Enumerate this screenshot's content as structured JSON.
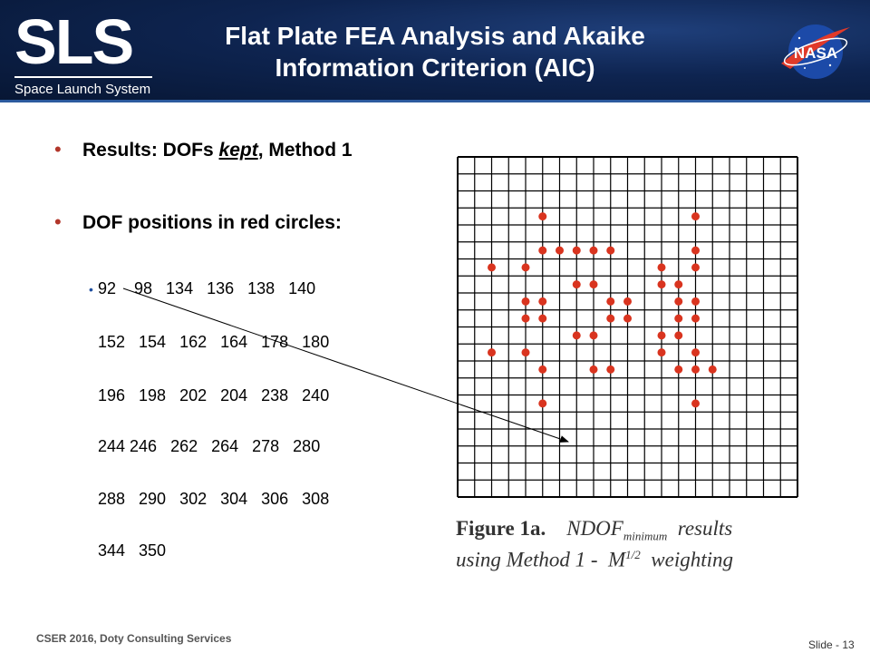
{
  "header": {
    "title_line1": "Flat Plate FEA Analysis and Akaike",
    "title_line2": "Information Criterion (AIC)",
    "logo_text": "SLS",
    "logo_subtitle": "Space Launch System",
    "nasa_text": "NASA",
    "bg_color": "#0e2450"
  },
  "bullets": {
    "b1_prefix": "Results: DOFs ",
    "b1_kept": "kept",
    "b1_suffix": ", Method 1",
    "b2": "DOF positions in red circles:"
  },
  "dof_rows": [
    "92    98   134   136   138   140",
    "152   154   162   164   178   180",
    "196   198   202   204   238   240",
    "244 246   262   264   278   280",
    "288   290   302   304   306   308",
    "344   350"
  ],
  "figure": {
    "grid_rows": 20,
    "grid_cols": 20,
    "dot_color": "#d9341f",
    "dots": [
      [
        3,
        4
      ],
      [
        3,
        13
      ],
      [
        5,
        4
      ],
      [
        5,
        5
      ],
      [
        5,
        6
      ],
      [
        5,
        7
      ],
      [
        5,
        8
      ],
      [
        5,
        13
      ],
      [
        6,
        1
      ],
      [
        6,
        3
      ],
      [
        6,
        11
      ],
      [
        6,
        13
      ],
      [
        7,
        6
      ],
      [
        7,
        7
      ],
      [
        7,
        11
      ],
      [
        7,
        12
      ],
      [
        8,
        3
      ],
      [
        8,
        4
      ],
      [
        8,
        8
      ],
      [
        8,
        9
      ],
      [
        8,
        12
      ],
      [
        8,
        13
      ],
      [
        9,
        3
      ],
      [
        9,
        4
      ],
      [
        9,
        8
      ],
      [
        9,
        9
      ],
      [
        9,
        12
      ],
      [
        9,
        13
      ],
      [
        10,
        6
      ],
      [
        10,
        7
      ],
      [
        10,
        11
      ],
      [
        10,
        12
      ],
      [
        11,
        1
      ],
      [
        11,
        3
      ],
      [
        11,
        11
      ],
      [
        11,
        13
      ],
      [
        12,
        4
      ],
      [
        12,
        7
      ],
      [
        12,
        8
      ],
      [
        12,
        12
      ],
      [
        12,
        13
      ],
      [
        12,
        14
      ],
      [
        14,
        4
      ],
      [
        14,
        13
      ]
    ],
    "caption_bold": "Figure  1a.",
    "caption_ndof": "NDOF",
    "caption_sub": "minimum",
    "caption_results": "  results",
    "caption_line2_a": "using Method 1 -  M",
    "caption_sup": "1/2",
    "caption_line2_b": "  weighting"
  },
  "footer": {
    "left": "CSER 2016, Doty Consulting Services",
    "right": "Slide - 13"
  }
}
